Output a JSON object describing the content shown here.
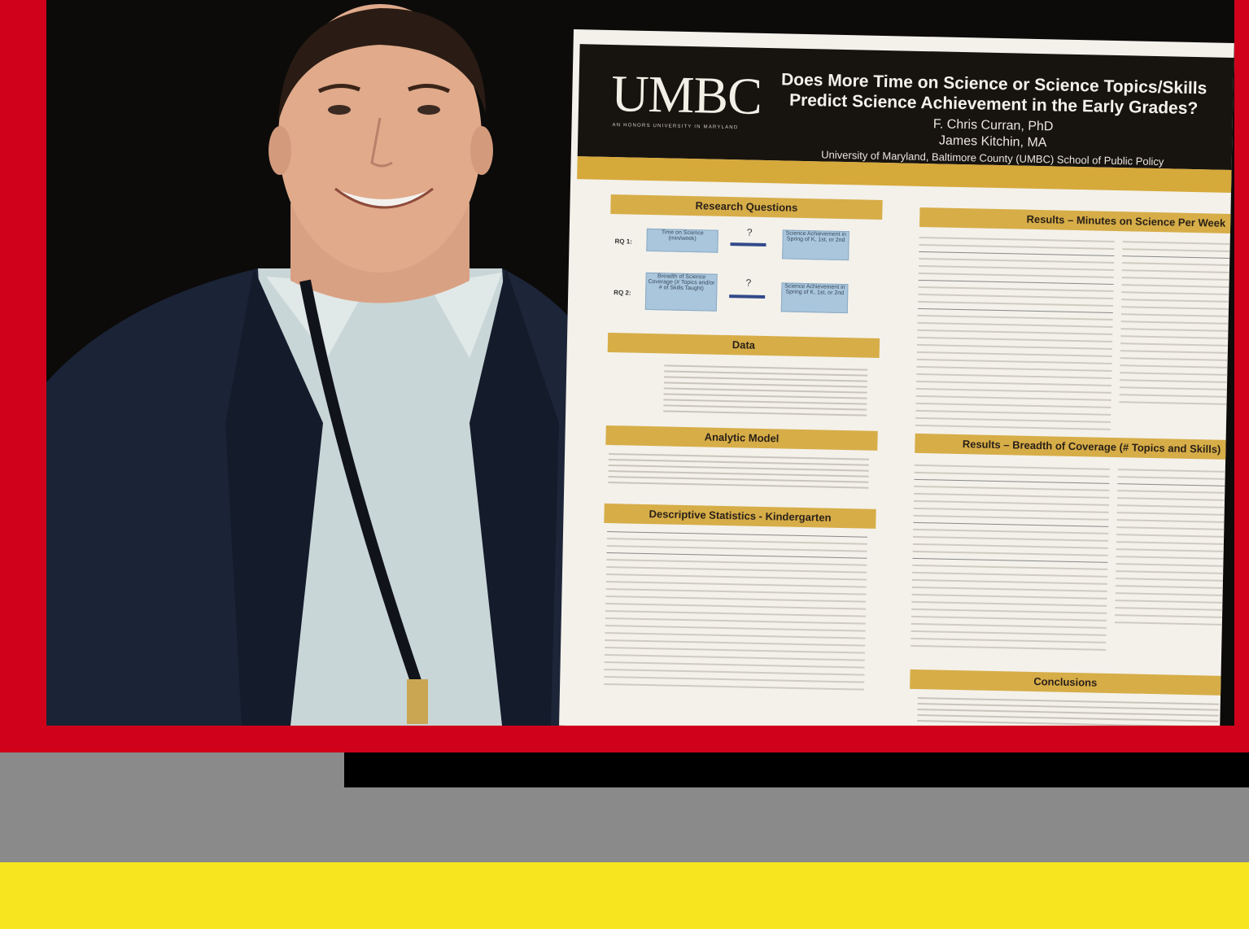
{
  "poster": {
    "logo": "UMBC",
    "logo_tagline": "AN HONORS UNIVERSITY IN MARYLAND",
    "title_line1": "Does More Time on Science or Science Topics/Skills",
    "title_line2": "Predict Science Achievement in the Early Grades?",
    "author1": "F. Chris Curran, PhD",
    "author2": "James Kitchin, MA",
    "affiliation": "University of Maryland, Baltimore County (UMBC) School of Public Policy",
    "sections": {
      "research_questions": "Research Questions",
      "data": "Data",
      "analytic_model": "Analytic Model",
      "descriptive_stats": "Descriptive Statistics - Kindergarten",
      "results_minutes": "Results – Minutes on Science Per Week",
      "results_breadth": "Results – Breadth of Coverage (# Topics and Skills)",
      "conclusions": "Conclusions"
    },
    "rq": {
      "rq1_label": "RQ 1:",
      "rq2_label": "RQ 2:",
      "question_mark": "?",
      "rq1_left": "Time on Science (min/week)",
      "rq1_right": "Science Achievement in Spring of K, 1st, or 2nd",
      "rq2_left": "Breadth of Science Coverage (# Topics and/or # of Skills Taught)",
      "rq2_right": "Science Achievement in Spring of K, 1st, or 2nd"
    }
  },
  "colors": {
    "frame_red": "#d0021b",
    "band_gray": "#8a8a8a",
    "band_yellow": "#f7e61f",
    "poster_gold": "#d7ad48"
  }
}
